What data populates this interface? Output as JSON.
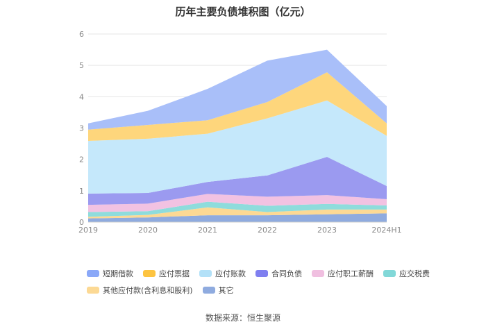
{
  "chart_data": {
    "type": "area",
    "stacked": true,
    "title": "历年主要负债堆积图（亿元）",
    "categories": [
      "2019",
      "2020",
      "2021",
      "2022",
      "2023",
      "2024H1"
    ],
    "ylim": [
      0,
      6
    ],
    "yticks": [
      "0",
      "1",
      "2",
      "3",
      "4",
      "5",
      "6"
    ],
    "xlabel": "",
    "ylabel": "",
    "series": [
      {
        "name": "其它",
        "color": "#8fabdf",
        "values": [
          0.12,
          0.15,
          0.22,
          0.22,
          0.25,
          0.28
        ]
      },
      {
        "name": "其他应付款(含利息和股利)",
        "color": "#fcd994",
        "values": [
          0.05,
          0.08,
          0.25,
          0.1,
          0.15,
          0.12
        ]
      },
      {
        "name": "应交税费",
        "color": "#8edcdc",
        "values": [
          0.15,
          0.12,
          0.18,
          0.2,
          0.18,
          0.13
        ]
      },
      {
        "name": "应付职工薪酬",
        "color": "#f2c2e2",
        "values": [
          0.23,
          0.24,
          0.25,
          0.29,
          0.28,
          0.2
        ]
      },
      {
        "name": "合同负债",
        "color": "#9b9af0",
        "values": [
          0.36,
          0.34,
          0.38,
          0.68,
          1.22,
          0.42
        ]
      },
      {
        "name": "应付账款",
        "color": "#c5e8fb",
        "values": [
          1.68,
          1.73,
          1.54,
          1.82,
          1.8,
          1.6
        ]
      },
      {
        "name": "应付票据",
        "color": "#fed67c",
        "values": [
          0.36,
          0.44,
          0.43,
          0.52,
          0.9,
          0.4
        ]
      },
      {
        "name": "短期借款",
        "color": "#a9bff9",
        "values": [
          0.2,
          0.45,
          1.0,
          1.32,
          0.72,
          0.55
        ]
      }
    ],
    "legend": [
      {
        "name": "短期借款",
        "color": "#8aa8f8"
      },
      {
        "name": "应付票据",
        "color": "#fdc441"
      },
      {
        "name": "应付账款",
        "color": "#b3e1f8"
      },
      {
        "name": "合同负债",
        "color": "#7f7ff0"
      },
      {
        "name": "应付职工薪酬",
        "color": "#f0bfe0"
      },
      {
        "name": "应交税费",
        "color": "#82d8d8"
      },
      {
        "name": "其他应付款(含利息和股利)",
        "color": "#fcd994"
      },
      {
        "name": "其它",
        "color": "#8fabdf"
      }
    ]
  },
  "source": "数据来源：恒生聚源"
}
